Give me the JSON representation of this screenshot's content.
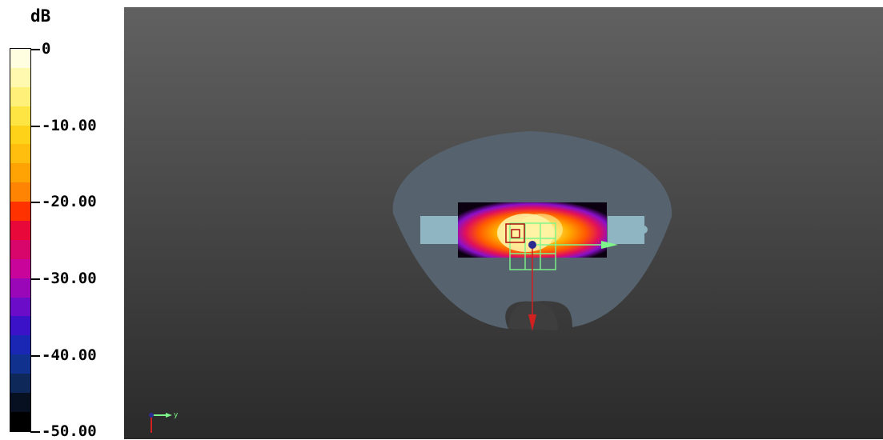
{
  "legend": {
    "unit": "dB",
    "ticks": [
      "0",
      "-10.00",
      "-20.00",
      "-30.00",
      "-40.00",
      "-50.00"
    ],
    "colors": [
      "#fffee0",
      "#fff9b0",
      "#fff07a",
      "#ffe543",
      "#ffd21a",
      "#ffbe0d",
      "#ffa305",
      "#ff8404",
      "#ff3200",
      "#e8093a",
      "#d8066a",
      "#c9049a",
      "#9a07b8",
      "#6a0cc8",
      "#3b12c8",
      "#1a27b4",
      "#11318f",
      "#0f285a",
      "#061020",
      "#000000"
    ]
  },
  "viewport": {
    "phantom_color": "#56636f",
    "source_color": "#8fb5c2",
    "axis_labels": {
      "y": "y"
    }
  }
}
